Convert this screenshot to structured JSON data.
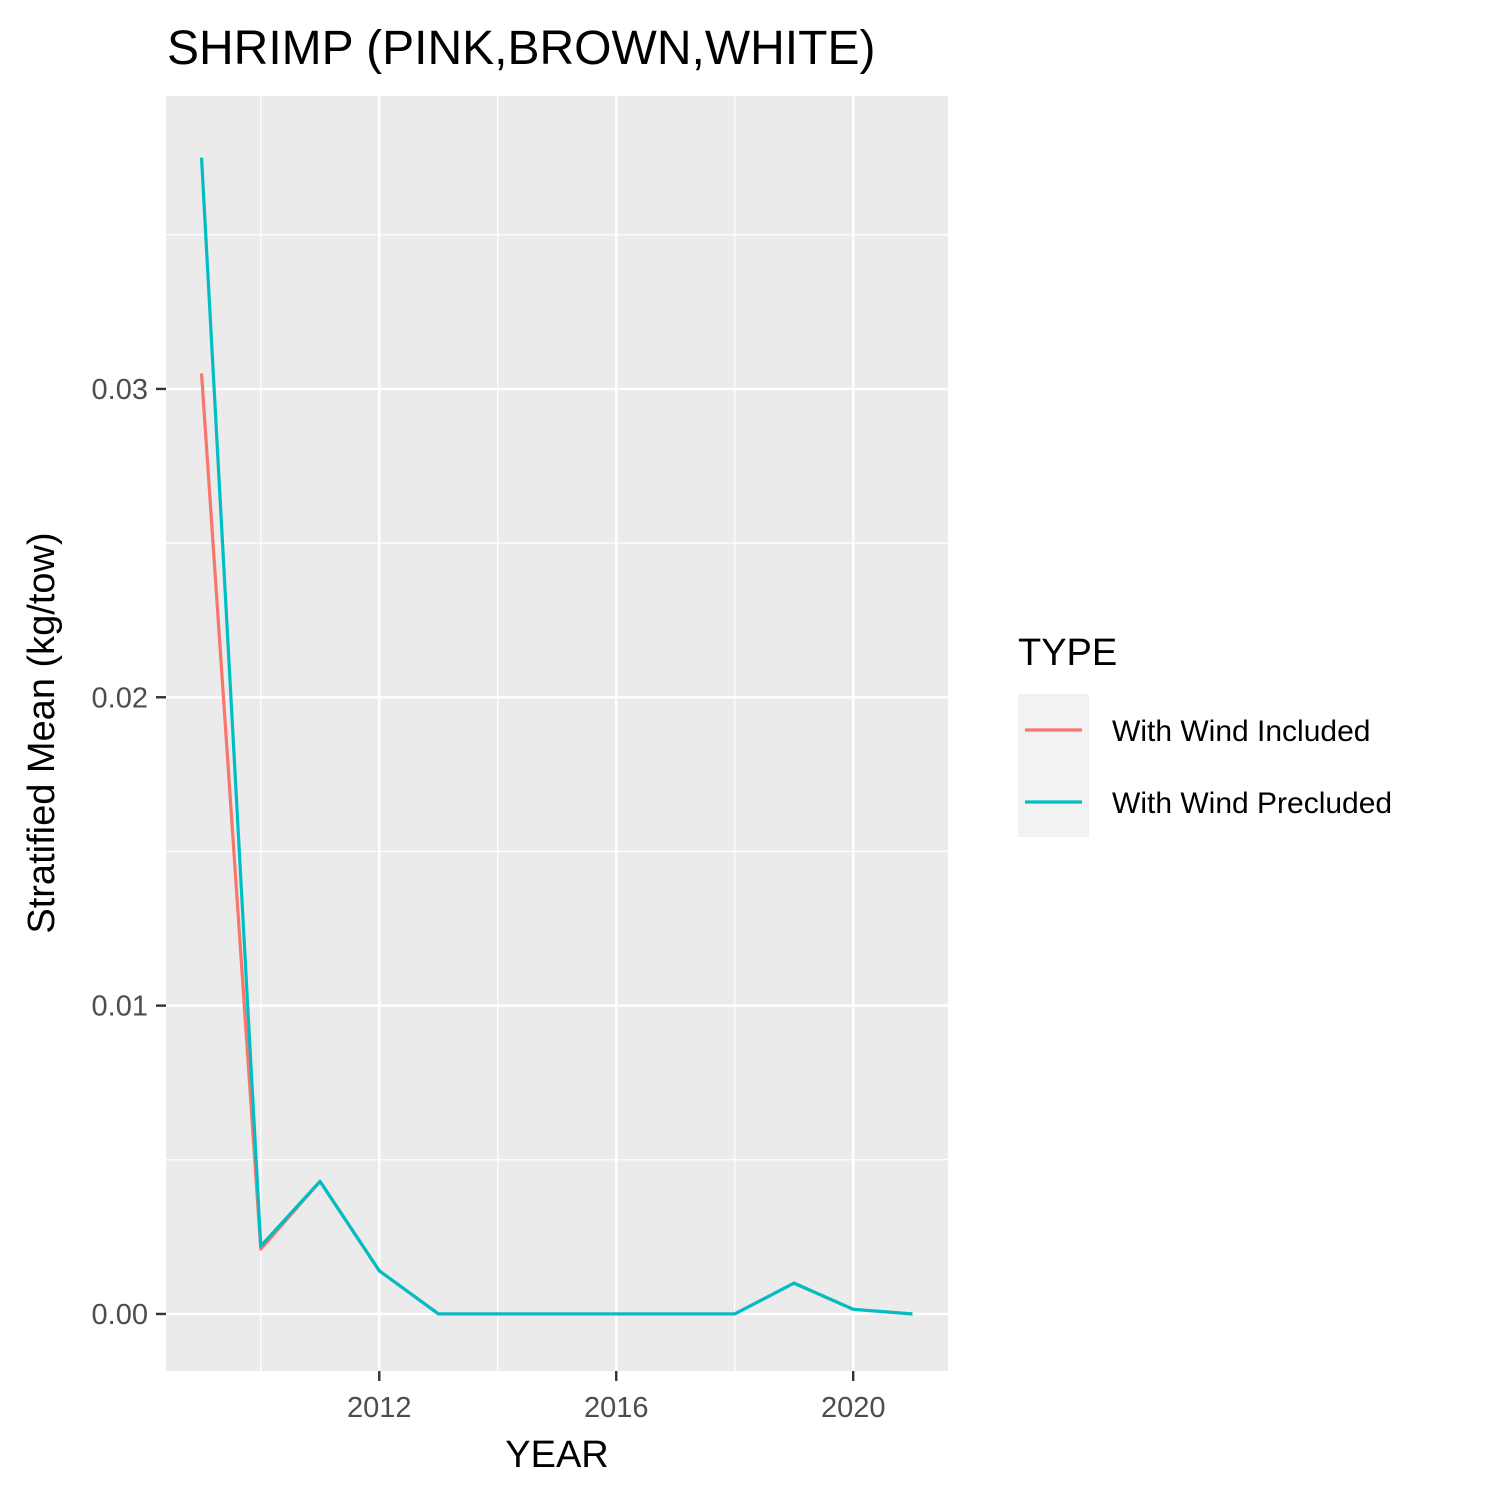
{
  "chart_data": {
    "type": "line",
    "title": "SHRIMP (PINK,BROWN,WHITE)",
    "xlabel": "YEAR",
    "ylabel": "Stratified Mean (kg/tow)",
    "xlim": [
      2008.4,
      2021.6
    ],
    "ylim": [
      -0.00185,
      0.0395
    ],
    "x_ticks": [
      2012,
      2016,
      2020
    ],
    "x_tick_labels": [
      "2012",
      "2016",
      "2020"
    ],
    "x_minor_ticks": [
      2010,
      2014,
      2018
    ],
    "y_ticks": [
      0.0,
      0.01,
      0.02,
      0.03
    ],
    "y_tick_labels": [
      "0.00",
      "0.01",
      "0.02",
      "0.03"
    ],
    "y_minor_ticks": [
      0.005,
      0.015,
      0.025,
      0.035
    ],
    "grid": true,
    "legend": {
      "title": "TYPE",
      "position": "right"
    },
    "x": [
      2009,
      2010,
      2011,
      2012,
      2013,
      2014,
      2015,
      2016,
      2017,
      2018,
      2019,
      2020,
      2021
    ],
    "series": [
      {
        "name": "With Wind Included",
        "color": "#F8766D",
        "values": [
          0.0305,
          0.0021,
          0.0043,
          0.0014,
          0.0,
          0.0,
          0.0,
          0.0,
          0.0,
          0.0,
          0.001,
          0.00015,
          0.0
        ]
      },
      {
        "name": "With Wind Precluded",
        "color": "#00BFC4",
        "values": [
          0.0375,
          0.0022,
          0.0043,
          0.0014,
          0.0,
          0.0,
          0.0,
          0.0,
          0.0,
          0.0,
          0.001,
          0.00015,
          0.0
        ]
      }
    ]
  }
}
